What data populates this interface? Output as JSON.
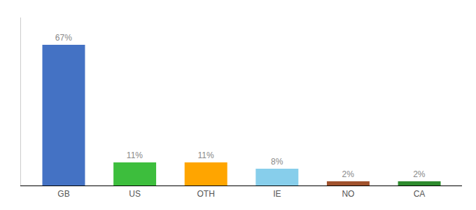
{
  "chart_data": {
    "type": "bar",
    "categories": [
      "GB",
      "US",
      "OTH",
      "IE",
      "NO",
      "CA"
    ],
    "values": [
      67,
      11,
      11,
      8,
      2,
      2
    ],
    "value_labels": [
      "67%",
      "11%",
      "11%",
      "8%",
      "2%",
      "2%"
    ],
    "colors": [
      "#4472C4",
      "#3DBE3D",
      "#FFA500",
      "#87CEEB",
      "#A0522D",
      "#2E8B2E"
    ],
    "ylim": [
      0,
      80
    ],
    "grid": false,
    "data_labels": true,
    "tick_labels": "x"
  }
}
